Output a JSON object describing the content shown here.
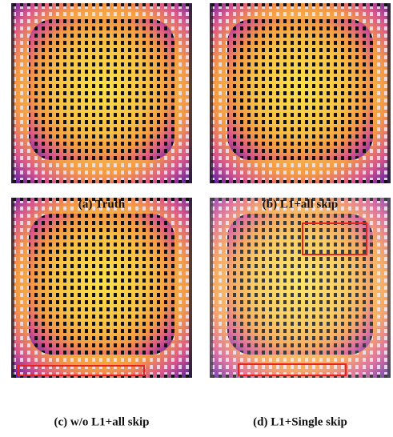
{
  "figure": {
    "captions": [
      "(a) Truth",
      "(b) L1+all skip",
      "(c) w/o L1+all skip",
      "(d) L1+Single skip"
    ]
  }
}
